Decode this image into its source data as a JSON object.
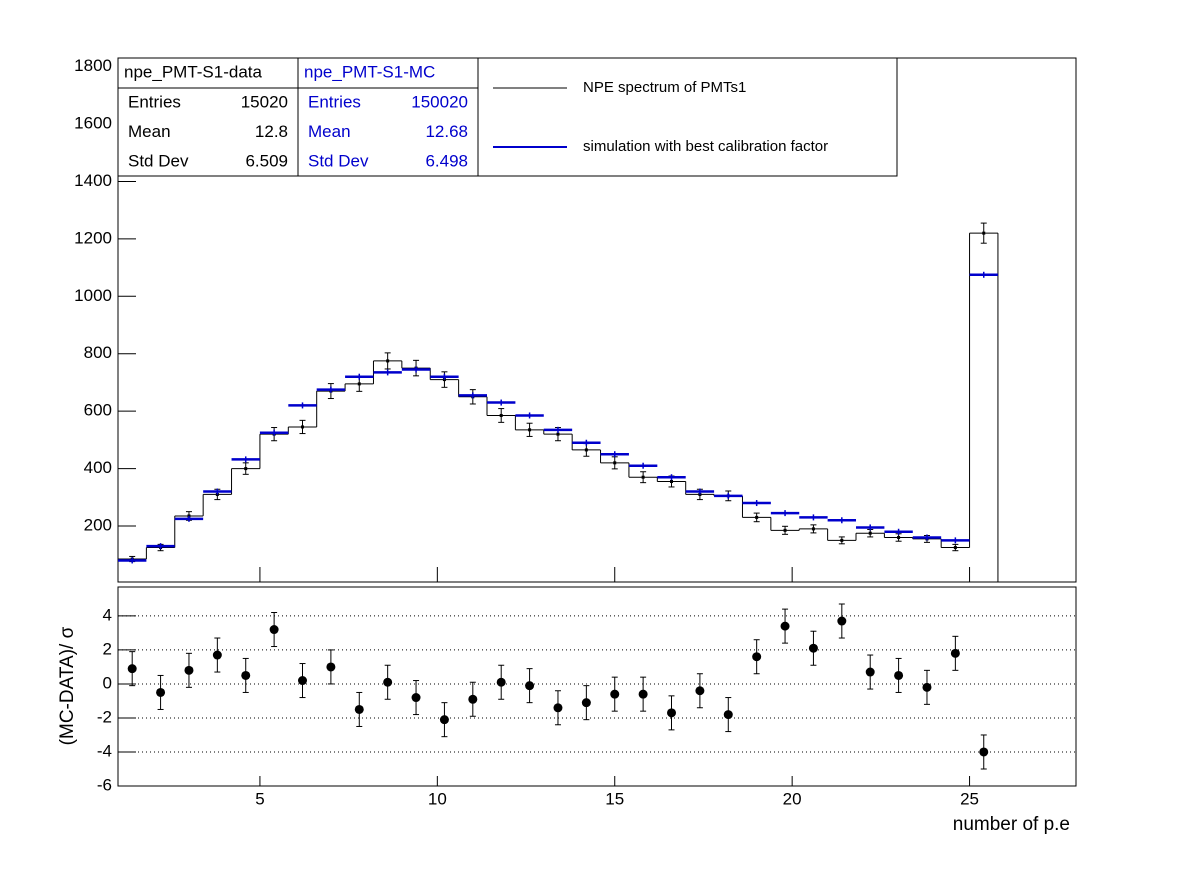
{
  "chart_data": [
    {
      "type": "histogram",
      "x": [
        1.4,
        2.2,
        3,
        3.8,
        4.6,
        5.4,
        6.2,
        7,
        7.8,
        8.6,
        9.4,
        10.2,
        11,
        11.8,
        12.6,
        13.4,
        14.2,
        15,
        15.8,
        16.6,
        17.4,
        18.2,
        19,
        19.8,
        20.6,
        21.4,
        22.2,
        23,
        23.8,
        24.6,
        25.4
      ],
      "series": [
        {
          "name": "NPE spectrum of PMTs1",
          "color": "#000000",
          "values": [
            85,
            125,
            235,
            310,
            400,
            520,
            545,
            670,
            695,
            775,
            750,
            710,
            650,
            585,
            535,
            520,
            465,
            420,
            370,
            355,
            310,
            305,
            230,
            185,
            190,
            150,
            175,
            160,
            155,
            125,
            1220
          ],
          "errors": [
            9,
            11,
            15,
            18,
            20,
            23,
            23,
            26,
            26,
            28,
            27,
            27,
            25,
            24,
            23,
            23,
            22,
            21,
            19,
            19,
            18,
            17,
            15,
            14,
            14,
            12,
            13,
            13,
            12,
            11,
            35
          ]
        },
        {
          "name": "simulation with best calibration factor",
          "color": "#0000cc",
          "values": [
            80,
            130,
            225,
            320,
            432,
            525,
            620,
            675,
            720,
            735,
            745,
            720,
            655,
            630,
            585,
            535,
            490,
            450,
            410,
            370,
            320,
            305,
            280,
            245,
            230,
            220,
            195,
            180,
            160,
            150,
            1075
          ]
        }
      ],
      "xlim": [
        1,
        28
      ],
      "ylim": [
        5,
        1830
      ],
      "yticks": [
        200,
        400,
        600,
        800,
        1000,
        1200,
        1400,
        1600,
        1800
      ],
      "stats": [
        {
          "title": "npe_PMT-S1-data",
          "color": "#000000",
          "rows": [
            {
              "label": "Entries",
              "value": 15020
            },
            {
              "label": "Mean",
              "value": 12.8
            },
            {
              "label": "Std Dev",
              "value": 6.509
            }
          ]
        },
        {
          "title": "npe_PMT-S1-MC",
          "color": "#0000cc",
          "rows": [
            {
              "label": "Entries",
              "value": 150020
            },
            {
              "label": "Mean",
              "value": 12.68
            },
            {
              "label": "Std Dev",
              "value": 6.498
            }
          ]
        }
      ]
    },
    {
      "type": "scatter",
      "x": [
        1.4,
        2.2,
        3,
        3.8,
        4.6,
        5.4,
        6.2,
        7,
        7.8,
        8.6,
        9.4,
        10.2,
        11,
        11.8,
        12.6,
        13.4,
        14.2,
        15,
        15.8,
        16.6,
        17.4,
        18.2,
        19,
        19.8,
        20.6,
        21.4,
        22.2,
        23,
        23.8,
        24.6,
        25.4
      ],
      "values": [
        0.9,
        -0.5,
        0.8,
        1.7,
        0.5,
        3.2,
        0.2,
        1.0,
        -1.5,
        0.1,
        -0.8,
        -2.1,
        -0.9,
        0.1,
        -0.1,
        -1.4,
        -1.1,
        -0.6,
        -0.6,
        -1.7,
        -0.4,
        -1.8,
        1.6,
        3.4,
        2.1,
        3.7,
        0.7,
        0.5,
        -0.2,
        1.8,
        -4.0
      ],
      "errors": [
        1,
        1,
        1,
        1,
        1,
        1,
        1,
        1,
        1,
        1,
        1,
        1,
        1,
        1,
        1,
        1,
        1,
        1,
        1,
        1,
        1,
        1,
        1,
        1,
        1,
        1,
        1,
        1,
        1,
        1,
        1
      ],
      "color": "#000000",
      "xlim": [
        1,
        28
      ],
      "ylim": [
        -6,
        5.7
      ],
      "xticks": [
        5,
        10,
        15,
        20,
        25
      ],
      "yticks": [
        -6,
        -4,
        -2,
        0,
        2,
        4
      ],
      "grid": true,
      "xlabel": "number of p.e",
      "ylabel": "(MC-DATA)/ σ"
    }
  ]
}
